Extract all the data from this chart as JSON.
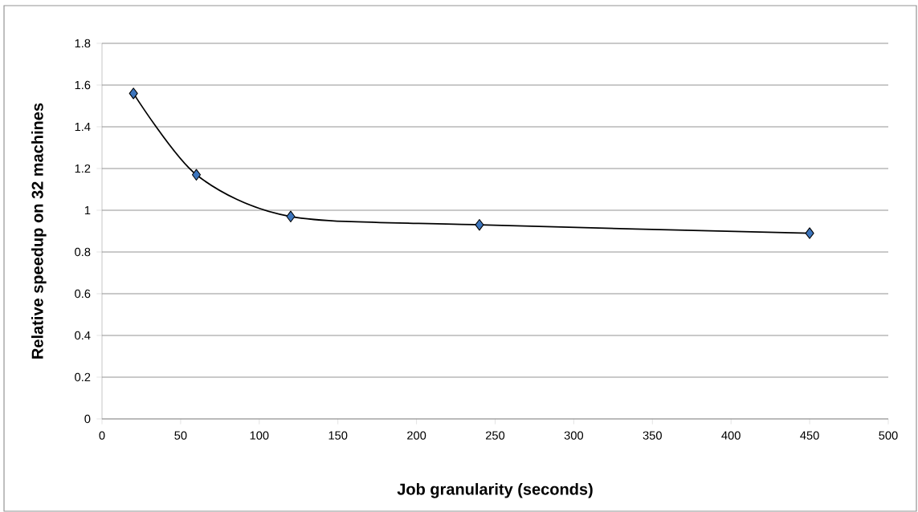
{
  "chart_data": {
    "type": "line",
    "xlabel": "Job granularity (seconds)",
    "ylabel": "Relative speedup  on  32  machines",
    "x": [
      20,
      60,
      120,
      240,
      450
    ],
    "series": [
      {
        "color": "#3c75bd",
        "values": [
          1.56,
          1.17,
          0.97,
          0.93,
          0.89
        ]
      }
    ],
    "xlim": [
      0,
      500
    ],
    "xticks": [
      0,
      50,
      100,
      150,
      200,
      250,
      300,
      350,
      400,
      450,
      500
    ],
    "ylim": [
      0,
      1.8
    ],
    "yticks": [
      0,
      0.2,
      0.4,
      0.6,
      0.8,
      1,
      1.2,
      1.4,
      1.6,
      1.8
    ],
    "grid": "y",
    "legend": false,
    "marker": "diamond",
    "line_style": "solid"
  }
}
